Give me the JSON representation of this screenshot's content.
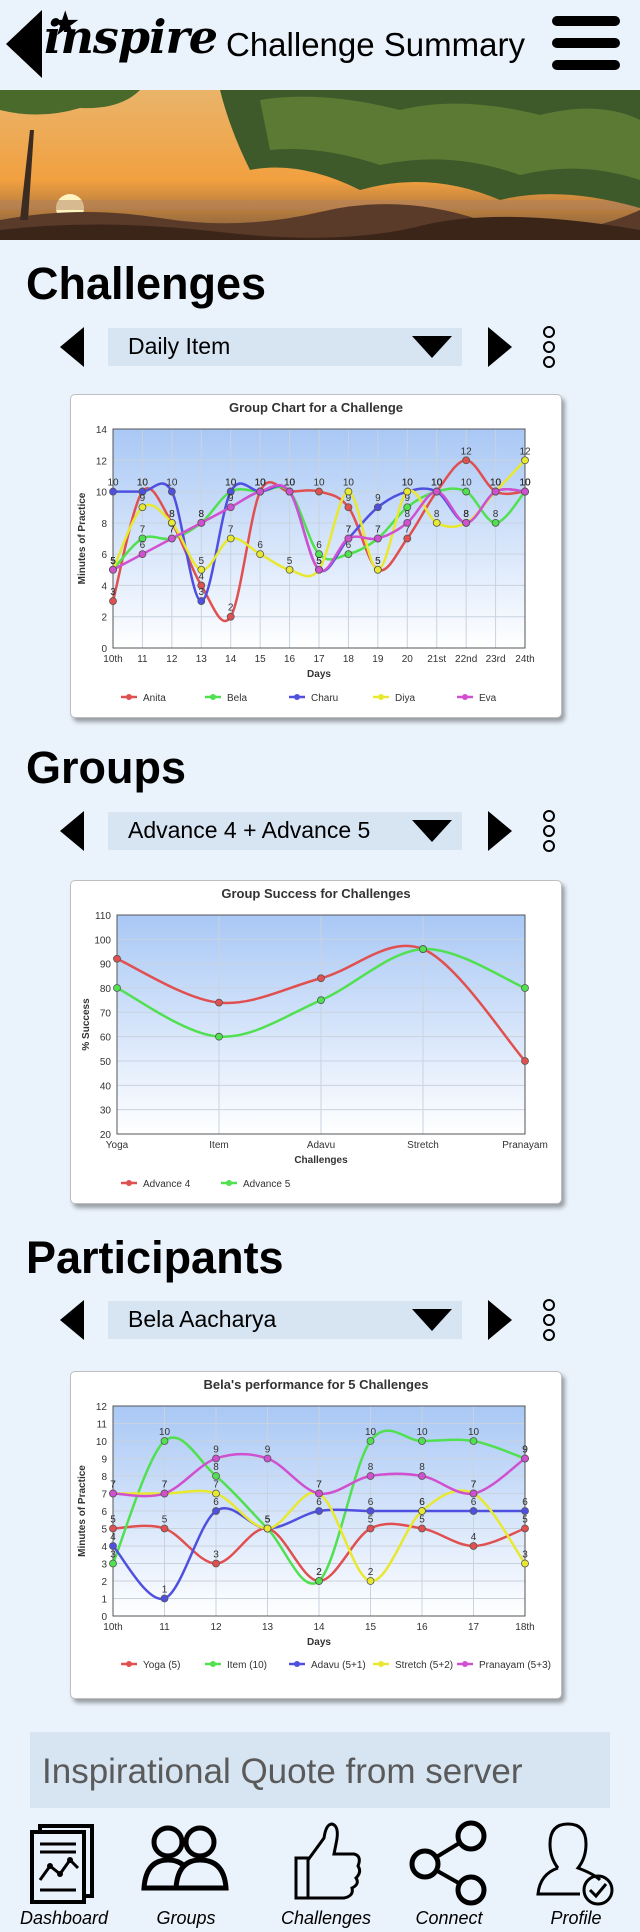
{
  "header": {
    "logo": "inspire",
    "title": "Challenge Summary"
  },
  "sections": {
    "challenges": {
      "title": "Challenges",
      "selected": "Daily Item"
    },
    "groups": {
      "title": "Groups",
      "selected": "Advance 4 + Advance 5"
    },
    "participants": {
      "title": "Participants",
      "selected": "Bela Aacharya"
    }
  },
  "quote": "Inspirational Quote from server",
  "nav": [
    {
      "label": "Dashboard",
      "icon": "dashboard-icon"
    },
    {
      "label": "Groups",
      "icon": "groups-icon"
    },
    {
      "label": "Challenges",
      "icon": "thumbs-up-icon"
    },
    {
      "label": "Connect",
      "icon": "share-icon"
    },
    {
      "label": "Profile",
      "icon": "profile-icon"
    }
  ],
  "colors": {
    "background": "#eaf2fb",
    "dropdown": "#d7e4f2"
  },
  "chart_data": [
    {
      "type": "line",
      "title": "Group Chart for a Challenge",
      "xlabel": "Days",
      "ylabel": "Minutes of Practice",
      "categories": [
        "10th",
        "11",
        "12",
        "13",
        "14",
        "15",
        "16",
        "17",
        "18",
        "19",
        "20",
        "21st",
        "22nd",
        "23rd",
        "24th"
      ],
      "ylim": [
        0,
        14
      ],
      "yticks": [
        0,
        2,
        4,
        6,
        8,
        10,
        12,
        14
      ],
      "legend": "bottom",
      "series": [
        {
          "name": "Anita",
          "color": "#e05050",
          "values": [
            3,
            10,
            8,
            4,
            2,
            10,
            10,
            10,
            9,
            5,
            7,
            10,
            12,
            10,
            10
          ]
        },
        {
          "name": "Bela",
          "color": "#50e050",
          "values": [
            5,
            7,
            7,
            8,
            10,
            10,
            10,
            6,
            6,
            7,
            9,
            10,
            10,
            8,
            10
          ]
        },
        {
          "name": "Charu",
          "color": "#5050e0",
          "values": [
            10,
            10,
            10,
            3,
            10,
            10,
            10,
            5,
            7,
            9,
            10,
            10,
            8,
            10,
            10
          ]
        },
        {
          "name": "Diya",
          "color": "#e8e830",
          "values": [
            5,
            9,
            8,
            5,
            7,
            6,
            5,
            5,
            10,
            5,
            10,
            8,
            8,
            10,
            12
          ]
        },
        {
          "name": "Eva",
          "color": "#d050d0",
          "values": [
            5,
            6,
            7,
            8,
            9,
            10,
            10,
            5,
            7,
            7,
            8,
            10,
            8,
            10,
            10
          ]
        }
      ]
    },
    {
      "type": "line",
      "title": "Group Success for Challenges",
      "xlabel": "Challenges",
      "ylabel": "% Success",
      "categories": [
        "Yoga",
        "Item",
        "Adavu",
        "Stretch",
        "Pranayam"
      ],
      "ylim": [
        20,
        110
      ],
      "yticks": [
        20,
        30,
        40,
        50,
        60,
        70,
        80,
        90,
        100,
        110
      ],
      "legend": "bottom",
      "series": [
        {
          "name": "Advance 4",
          "color": "#e05050",
          "values": [
            92,
            74,
            84,
            96,
            50
          ]
        },
        {
          "name": "Advance 5",
          "color": "#50e050",
          "values": [
            80,
            60,
            75,
            96,
            80
          ]
        }
      ]
    },
    {
      "type": "line",
      "title": "Bela's performance for 5 Challenges",
      "xlabel": "Days",
      "ylabel": "Minutes of Practice",
      "categories": [
        "10th",
        "11",
        "12",
        "13",
        "14",
        "15",
        "16",
        "17",
        "18th"
      ],
      "ylim": [
        0,
        12
      ],
      "yticks": [
        0,
        1,
        2,
        3,
        4,
        5,
        6,
        7,
        8,
        9,
        10,
        11,
        12
      ],
      "legend": "bottom",
      "series": [
        {
          "name": "Yoga (5)",
          "color": "#e05050",
          "values": [
            5,
            5,
            3,
            5,
            2,
            5,
            5,
            4,
            5
          ]
        },
        {
          "name": "Item (10)",
          "color": "#50e050",
          "values": [
            3,
            10,
            8,
            5,
            2,
            10,
            10,
            10,
            9
          ]
        },
        {
          "name": "Adavu (5+1)",
          "color": "#5050e0",
          "values": [
            4,
            1,
            6,
            5,
            6,
            6,
            6,
            6,
            6
          ]
        },
        {
          "name": "Stretch (5+2)",
          "color": "#e8e830",
          "values": [
            7,
            7,
            7,
            5,
            7,
            2,
            6,
            7,
            3
          ]
        },
        {
          "name": "Pranayam (5+3)",
          "color": "#d050d0",
          "values": [
            7,
            7,
            9,
            9,
            7,
            8,
            8,
            7,
            9
          ]
        }
      ]
    }
  ]
}
